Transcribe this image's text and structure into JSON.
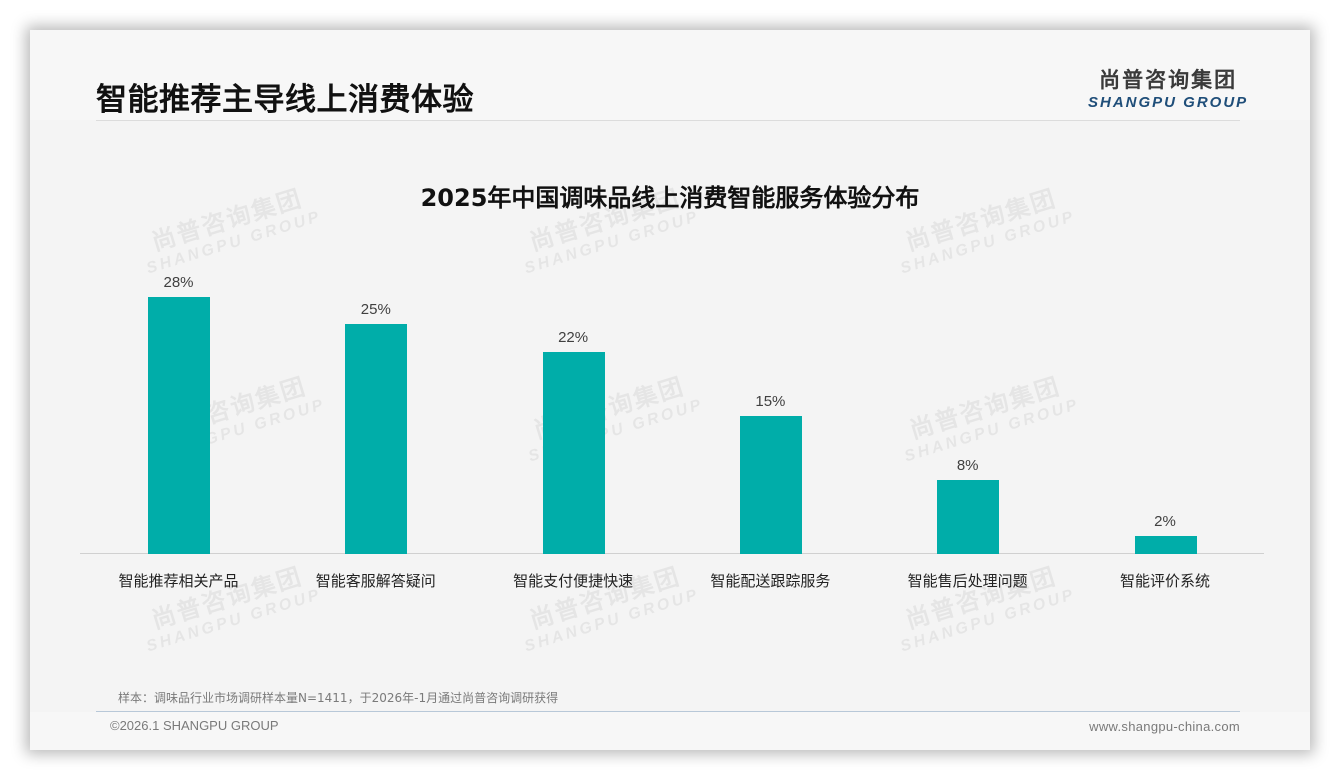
{
  "header": {
    "title": "智能推荐主导线上消费体验",
    "logo_cn": "尚普咨询集团",
    "logo_en": "SHANGPU GROUP"
  },
  "watermark": {
    "cn": "尚普咨询集团",
    "en": "SHANGPU GROUP"
  },
  "colors": {
    "bar": "#00ada9",
    "logo_en": "#1f4e79"
  },
  "chart_data": {
    "type": "bar",
    "title": "2025年中国调味品线上消费智能服务体验分布",
    "categories": [
      "智能推荐相关产品",
      "智能客服解答疑问",
      "智能支付便捷快速",
      "智能配送跟踪服务",
      "智能售后处理问题",
      "智能评价系统"
    ],
    "values": [
      28,
      25,
      22,
      15,
      8,
      2
    ],
    "value_labels": [
      "28%",
      "25%",
      "22%",
      "15%",
      "8%",
      "2%"
    ],
    "unit": "%",
    "xlabel": "",
    "ylabel": "",
    "ylim": [
      0,
      30
    ],
    "grid": false,
    "legend": null
  },
  "footer": {
    "note": "样本：调味品行业市场调研样本量N=1411，于2026年-1月通过尚普咨询调研获得",
    "copyright": "©2026.1 SHANGPU GROUP",
    "website": "www.shangpu-china.com"
  }
}
